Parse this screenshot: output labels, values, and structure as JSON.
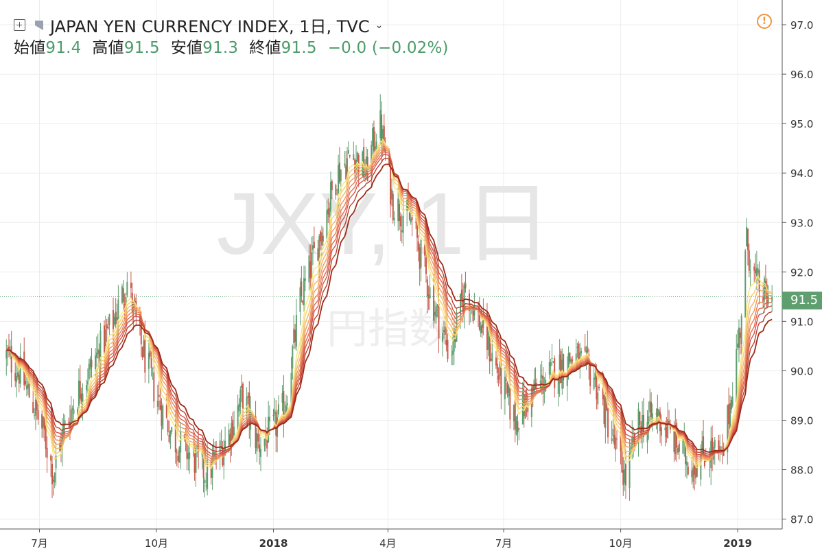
{
  "header": {
    "title": "JAPAN YEN CURRENCY INDEX, 1日, TVC",
    "caret": "⌄",
    "ohlc": {
      "open_label": "始値",
      "open_value": "91.4",
      "high_label": "高値",
      "high_value": "91.5",
      "low_label": "安値",
      "low_value": "91.3",
      "close_label": "終値",
      "close_value": "91.5",
      "change": "−0.0 (−0.02%)"
    },
    "alert_icon": "!"
  },
  "watermark": {
    "line1": "JXY, 1日",
    "line2": "円指数"
  },
  "price_tag": "91.5",
  "colors": {
    "up": "#5e9e6f",
    "down": "#c8584a",
    "ribbon": [
      "#f9e87b",
      "#f6cf70",
      "#f3b468",
      "#ef9a60",
      "#e98058",
      "#e06a50",
      "#d0554a",
      "#b8412e",
      "#9c2a18"
    ]
  },
  "chart_data": {
    "type": "candlestick",
    "ylim": [
      86.8,
      97.5
    ],
    "y_ticks": [
      "97.0",
      "96.0",
      "95.0",
      "94.0",
      "93.0",
      "92.0",
      "91.0",
      "90.0",
      "89.0",
      "88.0",
      "87.0"
    ],
    "x_ticks": [
      {
        "label": "7月",
        "date": "2017-07-01",
        "bold": false
      },
      {
        "label": "10月",
        "date": "2017-10-01",
        "bold": false
      },
      {
        "label": "2018",
        "date": "2018-01-01",
        "bold": true
      },
      {
        "label": "4月",
        "date": "2018-04-01",
        "bold": false
      },
      {
        "label": "7月",
        "date": "2018-07-01",
        "bold": false
      },
      {
        "label": "10月",
        "date": "2018-10-01",
        "bold": false
      },
      {
        "label": "2019",
        "date": "2019-01-01",
        "bold": true
      }
    ],
    "last_price": 91.5,
    "close_path": [
      [
        "2017-06-05",
        90.3
      ],
      [
        "2017-06-15",
        90.0
      ],
      [
        "2017-06-25",
        89.4
      ],
      [
        "2017-07-05",
        88.7
      ],
      [
        "2017-07-12",
        87.9
      ],
      [
        "2017-07-20",
        88.8
      ],
      [
        "2017-08-01",
        89.6
      ],
      [
        "2017-08-15",
        90.3
      ],
      [
        "2017-08-28",
        91.0
      ],
      [
        "2017-09-08",
        91.8
      ],
      [
        "2017-09-18",
        90.6
      ],
      [
        "2017-10-01",
        89.5
      ],
      [
        "2017-10-15",
        88.6
      ],
      [
        "2017-10-28",
        88.3
      ],
      [
        "2017-11-10",
        87.9
      ],
      [
        "2017-11-25",
        88.6
      ],
      [
        "2017-12-08",
        89.5
      ],
      [
        "2017-12-20",
        88.5
      ],
      [
        "2018-01-01",
        88.8
      ],
      [
        "2018-01-10",
        89.3
      ],
      [
        "2018-01-22",
        91.4
      ],
      [
        "2018-02-05",
        92.6
      ],
      [
        "2018-02-20",
        94.0
      ],
      [
        "2018-03-05",
        94.4
      ],
      [
        "2018-03-15",
        94.0
      ],
      [
        "2018-03-25",
        95.1
      ],
      [
        "2018-04-05",
        93.4
      ],
      [
        "2018-04-20",
        93.0
      ],
      [
        "2018-05-05",
        91.5
      ],
      [
        "2018-05-20",
        90.3
      ],
      [
        "2018-06-01",
        91.7
      ],
      [
        "2018-06-15",
        90.8
      ],
      [
        "2018-06-30",
        89.7
      ],
      [
        "2018-07-10",
        89.0
      ],
      [
        "2018-07-25",
        89.6
      ],
      [
        "2018-08-10",
        90.0
      ],
      [
        "2018-08-25",
        90.3
      ],
      [
        "2018-09-10",
        89.9
      ],
      [
        "2018-09-25",
        88.6
      ],
      [
        "2018-10-05",
        87.8
      ],
      [
        "2018-10-15",
        88.9
      ],
      [
        "2018-10-30",
        89.1
      ],
      [
        "2018-11-12",
        88.6
      ],
      [
        "2018-11-25",
        88.1
      ],
      [
        "2018-12-10",
        88.4
      ],
      [
        "2018-12-20",
        88.2
      ],
      [
        "2019-01-03",
        90.9
      ],
      [
        "2019-01-08",
        92.6
      ],
      [
        "2019-01-15",
        91.8
      ],
      [
        "2019-01-25",
        91.4
      ],
      [
        "2019-01-28",
        91.5
      ]
    ],
    "ema_periods": [
      8,
      10,
      12,
      14,
      16,
      18,
      20,
      23,
      27
    ]
  }
}
